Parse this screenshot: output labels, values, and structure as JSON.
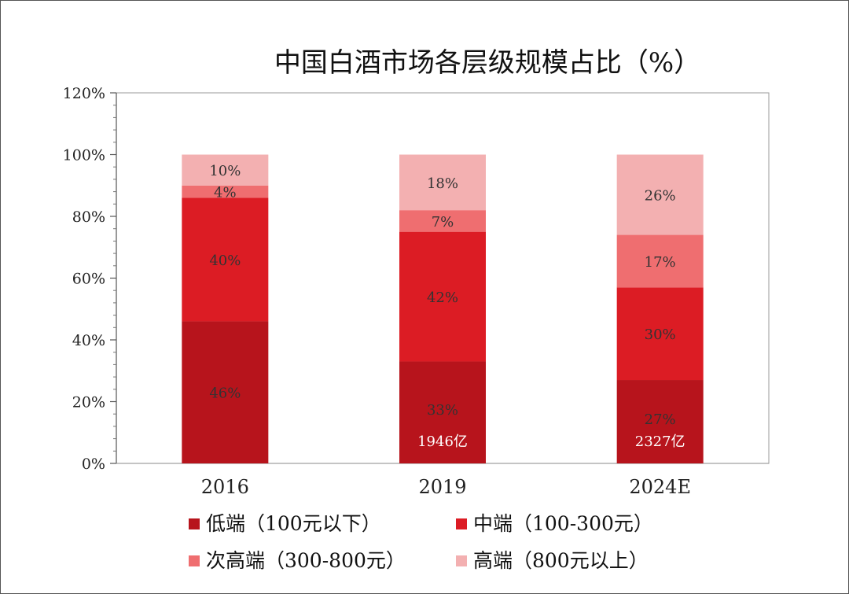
{
  "chart_data": {
    "type": "bar",
    "stacked": true,
    "title": "中国白酒市场各层级规模占比（%）",
    "xlabel": "",
    "ylabel": "",
    "ylim": [
      0,
      120
    ],
    "yticks": [
      "0%",
      "20%",
      "40%",
      "60%",
      "80%",
      "100%",
      "120%"
    ],
    "categories": [
      "2016",
      "2019",
      "2024E"
    ],
    "series": [
      {
        "name": "低端（100元以下）",
        "color": "#b7141c",
        "values": [
          46,
          33,
          27
        ],
        "labels": [
          "46%",
          "33%",
          "27%"
        ]
      },
      {
        "name": "中端（100-300元）",
        "color": "#dc1c24",
        "values": [
          40,
          42,
          30
        ],
        "labels": [
          "40%",
          "42%",
          "30%"
        ]
      },
      {
        "name": "次高端（300-800元）",
        "color": "#ef6e70",
        "values": [
          4,
          7,
          17
        ],
        "labels": [
          "4%",
          "7%",
          "17%"
        ]
      },
      {
        "name": "高端（800元以上）",
        "color": "#f3b0b1",
        "values": [
          10,
          18,
          26
        ],
        "labels": [
          "10%",
          "18%",
          "26%"
        ]
      }
    ],
    "annotations": [
      {
        "category": "2019",
        "text": "1946亿"
      },
      {
        "category": "2024E",
        "text": "2327亿"
      }
    ],
    "grid": false,
    "legend": "bottom"
  }
}
